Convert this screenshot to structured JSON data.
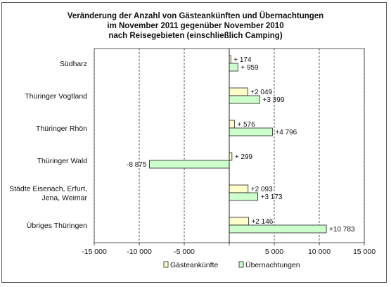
{
  "chart_data": {
    "type": "bar",
    "orientation": "horizontal",
    "title_lines": [
      "Veränderung der Anzahl von Gästeankünften und Übernachtungen",
      "im November 2011 gegenüber November 2010",
      "nach Reisegebieten (einschließlich Camping)"
    ],
    "categories": [
      [
        "Südharz"
      ],
      [
        "Thüringer Vogtland"
      ],
      [
        "Thüringer Rhön"
      ],
      [
        "Thüringer Wald"
      ],
      [
        "Städte Eisenach, Erfurt,",
        "Jena, Weimar"
      ],
      [
        "Übriges Thüringen"
      ]
    ],
    "series": [
      {
        "name": "Gästeankünfte",
        "color": "#ffffcc",
        "values": [
          174,
          2049,
          576,
          299,
          2093,
          2146
        ],
        "labels": [
          "+ 174",
          "+2 049",
          "+ 576",
          "+ 299",
          "+2 093",
          "+2 146"
        ]
      },
      {
        "name": "Übernachtungen",
        "color": "#ccffcc",
        "values": [
          959,
          3399,
          4796,
          -8875,
          3173,
          10783
        ],
        "labels": [
          "+ 959",
          "+3 399",
          "+4 796",
          "-8 875",
          "+3 173",
          "+10 783"
        ]
      }
    ],
    "xlim": [
      -15000,
      15000
    ],
    "xticks": [
      -15000,
      -10000,
      -5000,
      0,
      5000,
      10000,
      15000
    ],
    "xtick_labels": [
      "-15 000",
      "-10 000",
      "-5 000",
      "",
      "5 000",
      "10 000",
      "15 000"
    ],
    "grid": "vertical dashed",
    "legend": "bottom"
  }
}
